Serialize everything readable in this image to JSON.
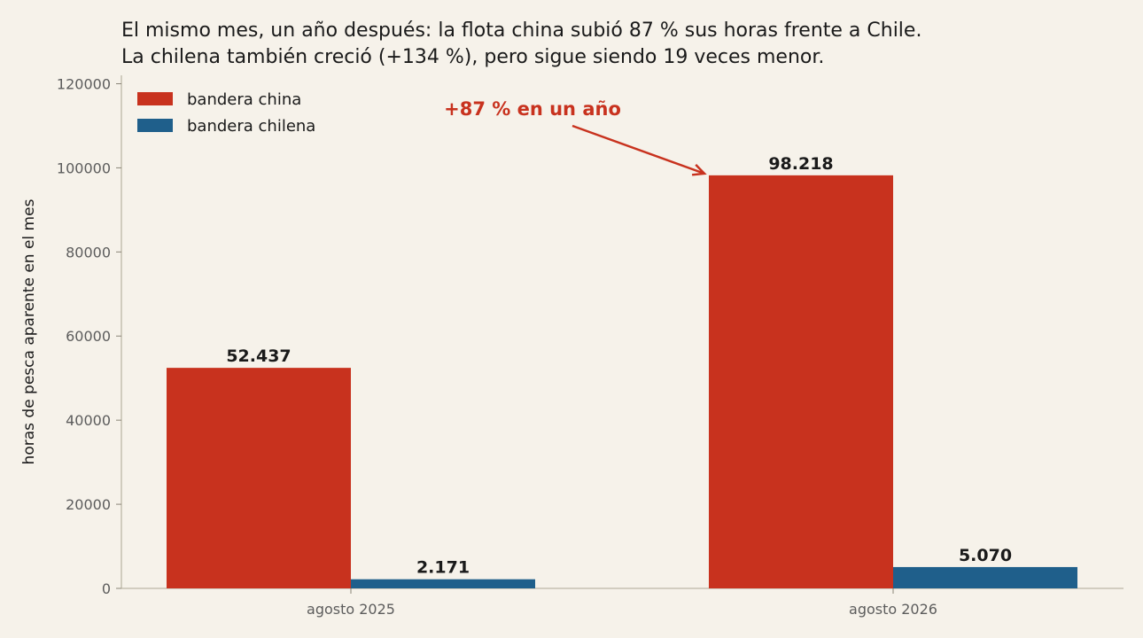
{
  "chart_data": {
    "type": "bar",
    "title_line1": "El mismo mes, un año después: la flota china subió 87 % sus horas frente a Chile.",
    "title_line2": "La chilena también creció (+134 %), pero sigue siendo 19 veces menor.",
    "ylabel": "horas de pesca aparente en el mes",
    "xlabel": "",
    "categories": [
      "agosto 2025",
      "agosto 2026"
    ],
    "series": [
      {
        "name": "bandera china",
        "color": "#c8321e",
        "values": [
          52437,
          98218
        ],
        "labels": [
          "52.437",
          "98.218"
        ]
      },
      {
        "name": "bandera chilena",
        "color": "#1f5f8b",
        "values": [
          2171,
          5070
        ],
        "labels": [
          "2.171",
          "5.070"
        ]
      }
    ],
    "ylim": [
      0,
      122000
    ],
    "yticks": [
      0,
      20000,
      40000,
      60000,
      80000,
      100000,
      120000
    ],
    "grid": false,
    "legend_position": "top-left",
    "annotation": {
      "text": "+87 % en un año",
      "color": "#c8321e",
      "target_series": 0,
      "target_category": 1
    }
  }
}
